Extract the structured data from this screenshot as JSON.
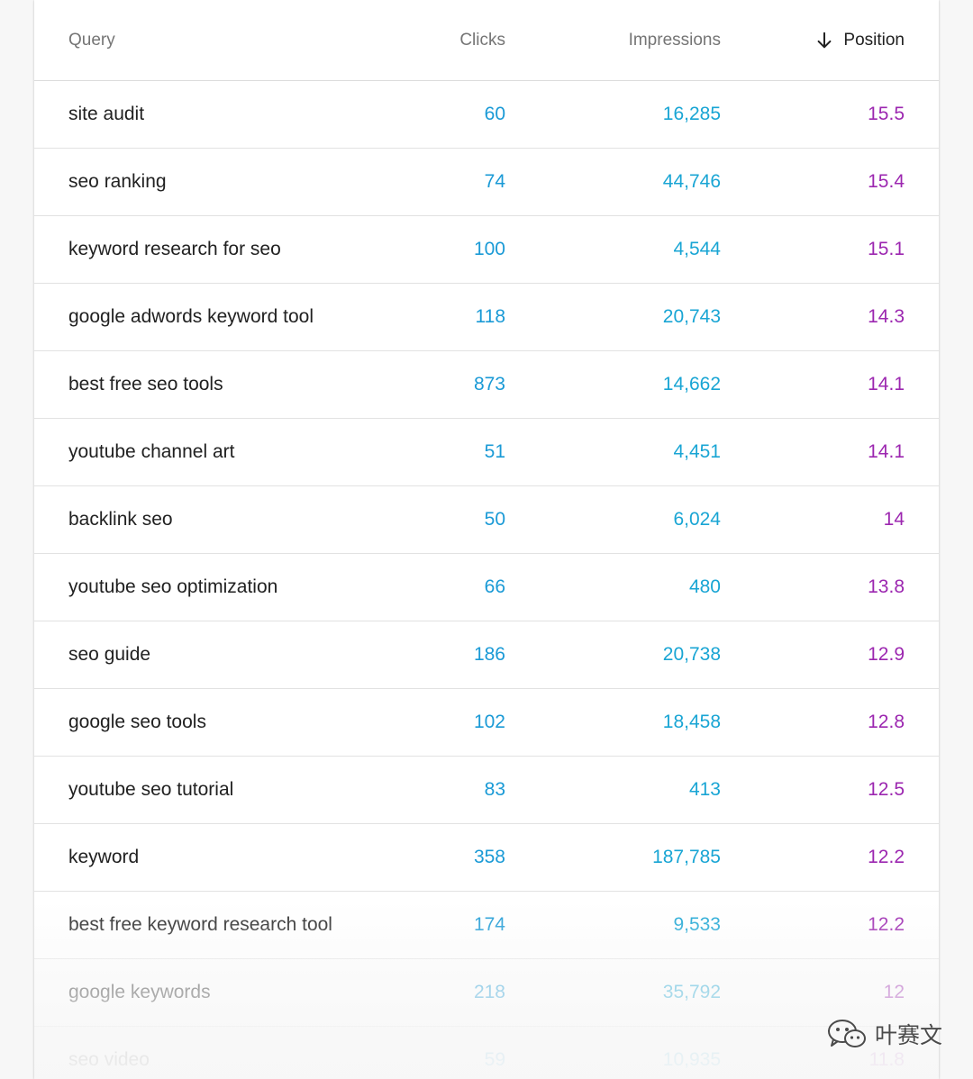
{
  "table": {
    "headers": {
      "query": "Query",
      "clicks": "Clicks",
      "impressions": "Impressions",
      "position": "Position"
    },
    "sort": {
      "column": "position",
      "direction": "descending",
      "icon": "arrow-down-icon"
    },
    "rows": [
      {
        "query": "site audit",
        "clicks": "60",
        "impressions": "16,285",
        "position": "15.5"
      },
      {
        "query": "seo ranking",
        "clicks": "74",
        "impressions": "44,746",
        "position": "15.4"
      },
      {
        "query": "keyword research for seo",
        "clicks": "100",
        "impressions": "4,544",
        "position": "15.1"
      },
      {
        "query": "google adwords keyword tool",
        "clicks": "118",
        "impressions": "20,743",
        "position": "14.3"
      },
      {
        "query": "best free seo tools",
        "clicks": "873",
        "impressions": "14,662",
        "position": "14.1"
      },
      {
        "query": "youtube channel art",
        "clicks": "51",
        "impressions": "4,451",
        "position": "14.1"
      },
      {
        "query": "backlink seo",
        "clicks": "50",
        "impressions": "6,024",
        "position": "14"
      },
      {
        "query": "youtube seo optimization",
        "clicks": "66",
        "impressions": "480",
        "position": "13.8"
      },
      {
        "query": "seo guide",
        "clicks": "186",
        "impressions": "20,738",
        "position": "12.9"
      },
      {
        "query": "google seo tools",
        "clicks": "102",
        "impressions": "18,458",
        "position": "12.8"
      },
      {
        "query": "youtube seo tutorial",
        "clicks": "83",
        "impressions": "413",
        "position": "12.5"
      },
      {
        "query": "keyword",
        "clicks": "358",
        "impressions": "187,785",
        "position": "12.2"
      },
      {
        "query": "best free keyword research tool",
        "clicks": "174",
        "impressions": "9,533",
        "position": "12.2"
      },
      {
        "query": "google keywords",
        "clicks": "218",
        "impressions": "35,792",
        "position": "12"
      },
      {
        "query": "seo video",
        "clicks": "59",
        "impressions": "10,935",
        "position": "11.8"
      }
    ]
  },
  "colors": {
    "clicks": "#1a9ad6",
    "impressions": "#19a5d4",
    "position": "#9c27b0",
    "query": "#212121"
  },
  "watermark": {
    "text": "叶赛文",
    "icon": "wechat-icon"
  }
}
